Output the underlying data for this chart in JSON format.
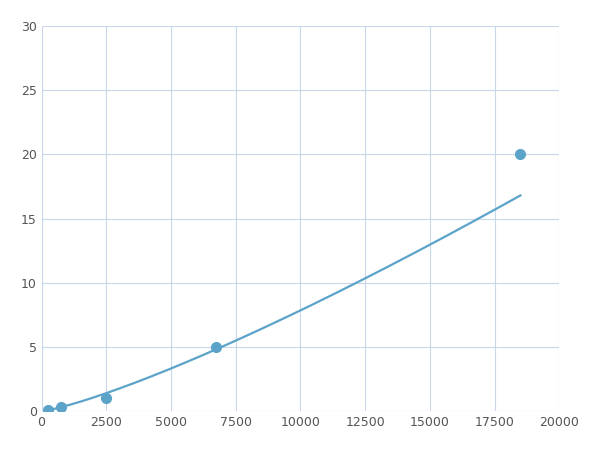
{
  "x": [
    250,
    750,
    2500,
    6750,
    18500
  ],
  "y": [
    0.1,
    0.3,
    1.0,
    5.0,
    20.0
  ],
  "line_color": "#5ba3c9",
  "marker_color": "#5ba3c9",
  "marker_size": 7,
  "xlim": [
    0,
    20000
  ],
  "ylim": [
    0,
    30
  ],
  "xticks": [
    0,
    2500,
    5000,
    7500,
    10000,
    12500,
    15000,
    17500,
    20000
  ],
  "yticks": [
    0,
    5,
    10,
    15,
    20,
    25,
    30
  ],
  "grid_color": "#c8d8e8",
  "background_color": "#ffffff",
  "linewidth": 1.6,
  "figsize": [
    6.0,
    4.5
  ],
  "dpi": 100
}
